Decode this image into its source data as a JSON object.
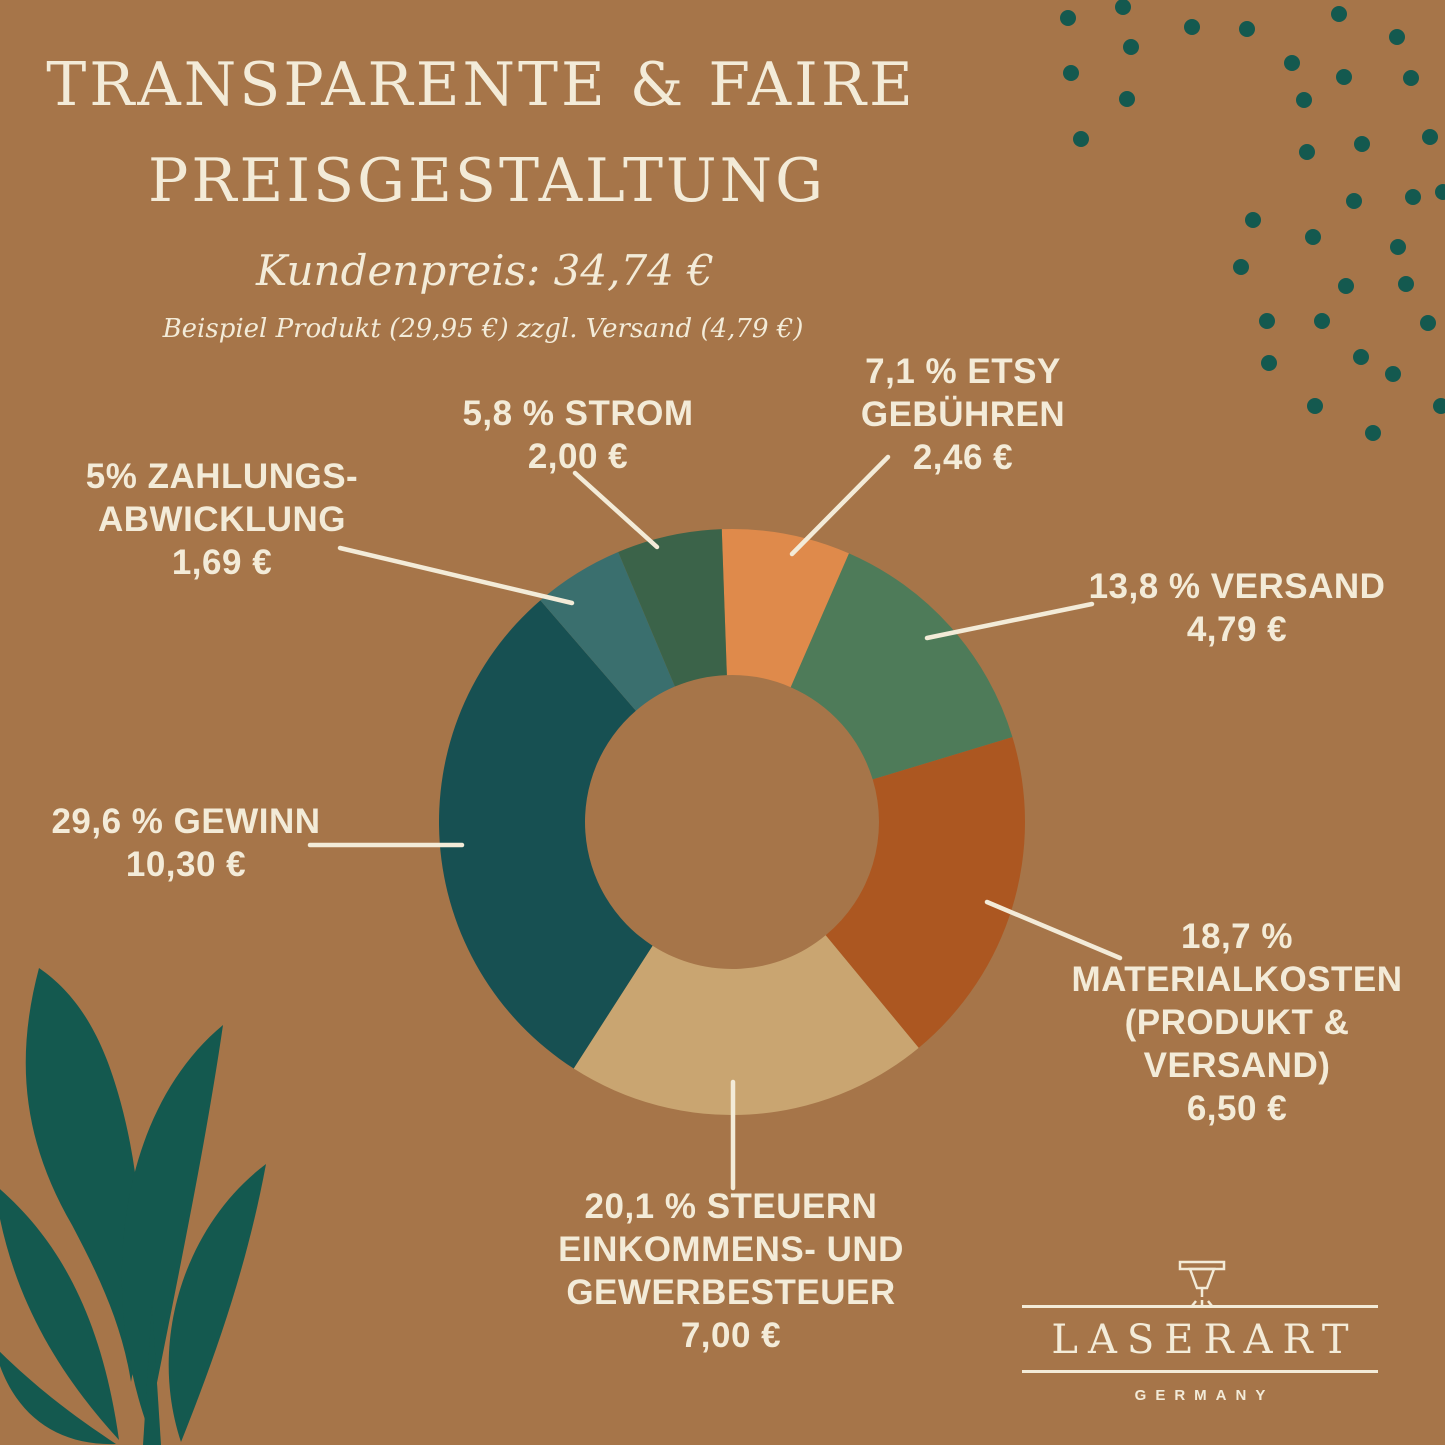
{
  "header": {
    "title_line1": "TRANSPARENTE & FAIRE",
    "title_line2": "PREISGESTALTUNG",
    "customer_price": "Kundenpreis:  34,74 €",
    "example_note": "Beispiel Produkt (29,95 €) zzgl. Versand (4,79 €)"
  },
  "chart_data": {
    "type": "donut",
    "total_customer_price": "34,74 €",
    "start_angle_deg": -2,
    "inner_radius_ratio": 0.5,
    "rotation": "clockwise",
    "segments": [
      {
        "name": "etsy-gebuehren",
        "pct": 7.1,
        "amount": "2,46 €",
        "color": "#DF8A4B",
        "label_lines": [
          "7,1 % ETSY",
          "GEBÜHREN",
          "2,46 €"
        ]
      },
      {
        "name": "versand",
        "pct": 13.8,
        "amount": "4,79 €",
        "color": "#4E7B59",
        "label_lines": [
          "13,8 % VERSAND",
          "4,79 €"
        ]
      },
      {
        "name": "materialkosten",
        "pct": 18.7,
        "amount": "6,50 €",
        "color": "#AC5721",
        "label_lines": [
          "18,7 %",
          "MATERIALKOSTEN",
          "(PRODUKT &",
          "VERSAND)",
          "6,50 €"
        ]
      },
      {
        "name": "steuern",
        "pct": 20.1,
        "amount": "7,00 €",
        "color": "#C9A571",
        "label_lines": [
          "20,1 % STEUERN",
          "EINKOMMENS- UND",
          "GEWERBESTEUER",
          "7,00 €"
        ]
      },
      {
        "name": "gewinn",
        "pct": 29.6,
        "amount": "10,30 €",
        "color": "#175052",
        "label_lines": [
          "29,6 % GEWINN",
          "10,30 €"
        ]
      },
      {
        "name": "zahlungsabwicklung",
        "pct": 5.0,
        "amount": "1,69 €",
        "color": "#3A6F6E",
        "label_lines": [
          "5% ZAHLUNGS-",
          "ABWICKLUNG",
          "1,69 €"
        ]
      },
      {
        "name": "strom",
        "pct": 5.8,
        "amount": "2,00 €",
        "color": "#3B6349",
        "label_lines": [
          "5,8 % STROM",
          "2,00 €"
        ]
      }
    ]
  },
  "logo": {
    "brand": "LASERART",
    "country": "GERMANY",
    "icon": "laser-cutter-icon"
  },
  "colors": {
    "background": "#A67549",
    "text_cream": "#F3EBD8",
    "decor_teal": "#14594F",
    "leader_line": "#F3EBD8"
  }
}
